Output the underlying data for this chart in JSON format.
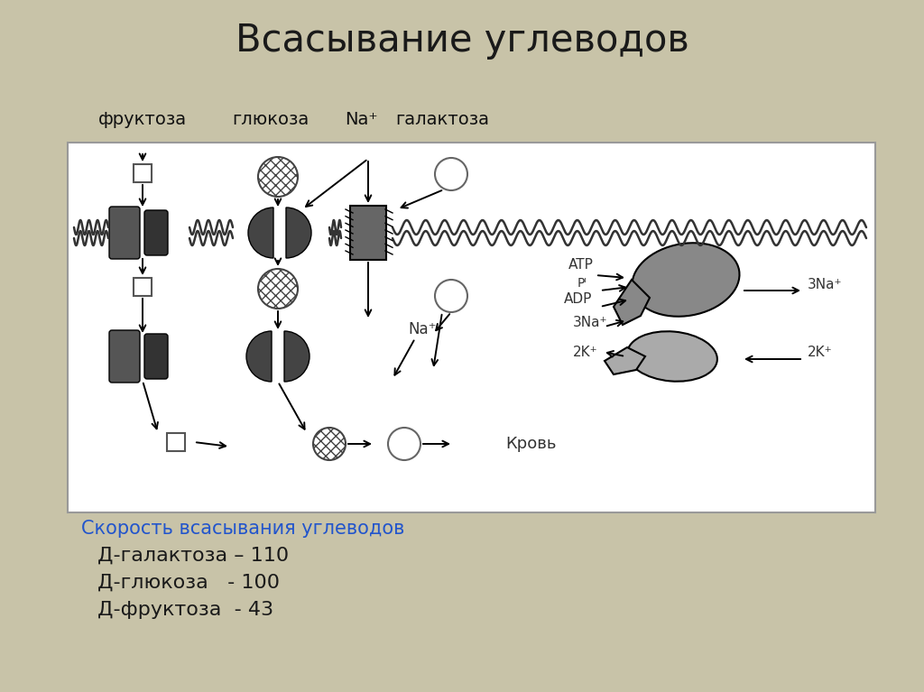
{
  "title": "Всасывание углеводов",
  "title_fontsize": 30,
  "bg_color": "#c8c3a8",
  "diagram_bg": "#ffffff",
  "label_fruktoza": "фруктоза",
  "label_glyukoza": "глюкоза",
  "label_na_plus": "Na⁺",
  "label_galaktoza": "галактоза",
  "label_krov": "Кровь",
  "label_speed": "Скорость всасывания углеводов",
  "label_speed_color": "#2255cc",
  "data_lines": [
    "Д-галактоза – 110",
    "Д-глюкоза   - 100",
    "Д-фруктоза  - 43"
  ],
  "atp_label": "ATP",
  "adp_label": "ADP",
  "pi_label": "Pᴵ",
  "na_label": "Na⁺",
  "na3_label": "3Na⁺",
  "k2_label": "2K⁺"
}
